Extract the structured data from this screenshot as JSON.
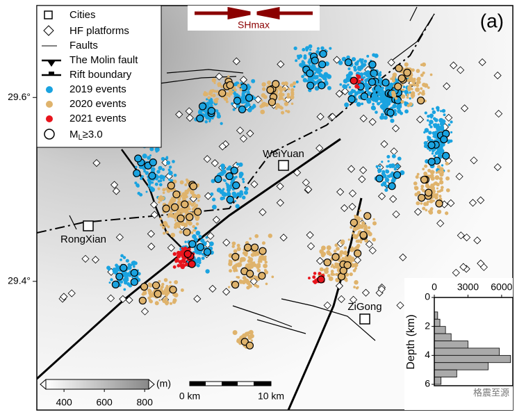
{
  "map": {
    "panel_label": "(a)",
    "stress_label": "SHmax",
    "yticks": [
      {
        "value": 29.6,
        "label": "29.6°"
      },
      {
        "value": 29.4,
        "label": "29.4°"
      }
    ],
    "ylim": [
      29.26,
      29.7
    ],
    "cities": [
      "WeiYuan",
      "RongXian",
      "ZiGong"
    ],
    "legend": {
      "cities": "Cities",
      "hf": "HF platforms",
      "faults": "Faults",
      "molin": "The Molin fault",
      "rift": "Rift boundary",
      "e2019": "2019 events",
      "e2020": "2020 events",
      "e2021": "2021 events",
      "mag": {
        "main": "M",
        "sub": "L",
        "rest": "≥3.0"
      }
    },
    "event_colors": {
      "e2019": "#1aa3e0",
      "e2020": "#dfb36c",
      "e2021": "#e8141c"
    },
    "colorbar": {
      "unit": "(m)",
      "lim": [
        310,
        820
      ],
      "ticks": [
        400,
        600,
        800
      ]
    },
    "scalebar": {
      "start": "0 km",
      "end": "10 km"
    },
    "watermark": "格震至源"
  },
  "chart_data": {
    "type": "histogram",
    "ylabel": "Depth (km)",
    "bins": [
      0.5,
      1,
      1.5,
      2,
      2.5,
      3,
      3.5,
      4,
      4.5,
      5,
      5.5,
      6
    ],
    "values": [
      0,
      300,
      500,
      1000,
      1500,
      3000,
      5800,
      6800,
      4800,
      2000,
      600
    ],
    "ylim": [
      0,
      6
    ],
    "yticks": [
      0,
      2,
      4,
      6
    ],
    "xlim": [
      0,
      7000
    ],
    "xticks": [
      0,
      3000,
      6000
    ],
    "color": "#aaaaaa"
  }
}
